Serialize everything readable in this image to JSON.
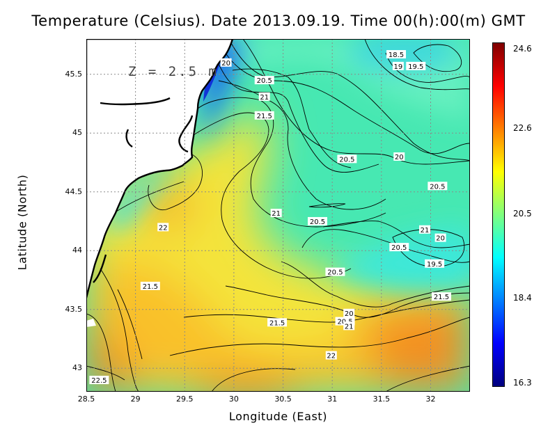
{
  "title": "Temperature (Celsius). Date 2013.09.19. Time 00(h):00(m) GMT",
  "depth_label": "Z = 2.5 m",
  "xlabel": "Longitude (East)",
  "ylabel": "Latitude (North)",
  "x_ticks": [
    "28.5",
    "29",
    "29.5",
    "30",
    "30.5",
    "31",
    "31.5",
    "32"
  ],
  "y_ticks": [
    "45.5",
    "45",
    "44.5",
    "44",
    "43.5",
    "43"
  ],
  "colorbar": {
    "labels": [
      "24.6",
      "22.6",
      "20.5",
      "18.4",
      "16.3"
    ],
    "stops": [
      "#7f0000",
      "#ff0000",
      "#ff7f00",
      "#ffff00",
      "#7fff7f",
      "#00ffff",
      "#007fff",
      "#0000ff",
      "#00007f"
    ]
  },
  "colors": {
    "land": "#ffffff",
    "coast": "#000000",
    "contour": "#000000"
  },
  "chart_data": {
    "type": "heatmap",
    "variable": "Temperature (Celsius)",
    "xlim": [
      28.5,
      32.4
    ],
    "ylim": [
      42.8,
      45.8
    ],
    "colorbar_range": [
      16.3,
      24.6
    ],
    "contour_labels": [
      {
        "lon": 31.65,
        "lat": 45.67,
        "value": "18.5"
      },
      {
        "lon": 31.67,
        "lat": 45.57,
        "value": "19"
      },
      {
        "lon": 31.85,
        "lat": 45.57,
        "value": "19.5"
      },
      {
        "lon": 29.92,
        "lat": 45.6,
        "value": "20"
      },
      {
        "lon": 30.31,
        "lat": 45.45,
        "value": "20.5"
      },
      {
        "lon": 30.31,
        "lat": 45.31,
        "value": "21"
      },
      {
        "lon": 30.31,
        "lat": 45.15,
        "value": "21.5"
      },
      {
        "lon": 31.15,
        "lat": 44.78,
        "value": "20.5"
      },
      {
        "lon": 31.68,
        "lat": 44.8,
        "value": "20"
      },
      {
        "lon": 32.07,
        "lat": 44.55,
        "value": "20.5"
      },
      {
        "lon": 29.28,
        "lat": 44.2,
        "value": "22"
      },
      {
        "lon": 30.43,
        "lat": 44.32,
        "value": "21"
      },
      {
        "lon": 30.85,
        "lat": 44.25,
        "value": "20.5"
      },
      {
        "lon": 31.94,
        "lat": 44.18,
        "value": "21"
      },
      {
        "lon": 32.1,
        "lat": 44.11,
        "value": "20"
      },
      {
        "lon": 31.68,
        "lat": 44.03,
        "value": "20.5"
      },
      {
        "lon": 32.04,
        "lat": 43.89,
        "value": "19.5"
      },
      {
        "lon": 29.15,
        "lat": 43.7,
        "value": "21.5"
      },
      {
        "lon": 31.03,
        "lat": 43.82,
        "value": "20.5"
      },
      {
        "lon": 32.11,
        "lat": 43.61,
        "value": "21.5"
      },
      {
        "lon": 31.17,
        "lat": 43.47,
        "value": "20"
      },
      {
        "lon": 31.13,
        "lat": 43.4,
        "value": "20.5"
      },
      {
        "lon": 31.17,
        "lat": 43.36,
        "value": "21"
      },
      {
        "lon": 30.44,
        "lat": 43.39,
        "value": "21.5"
      },
      {
        "lon": 30.99,
        "lat": 43.11,
        "value": "22"
      },
      {
        "lon": 28.63,
        "lat": 42.9,
        "value": "22.5"
      }
    ]
  }
}
